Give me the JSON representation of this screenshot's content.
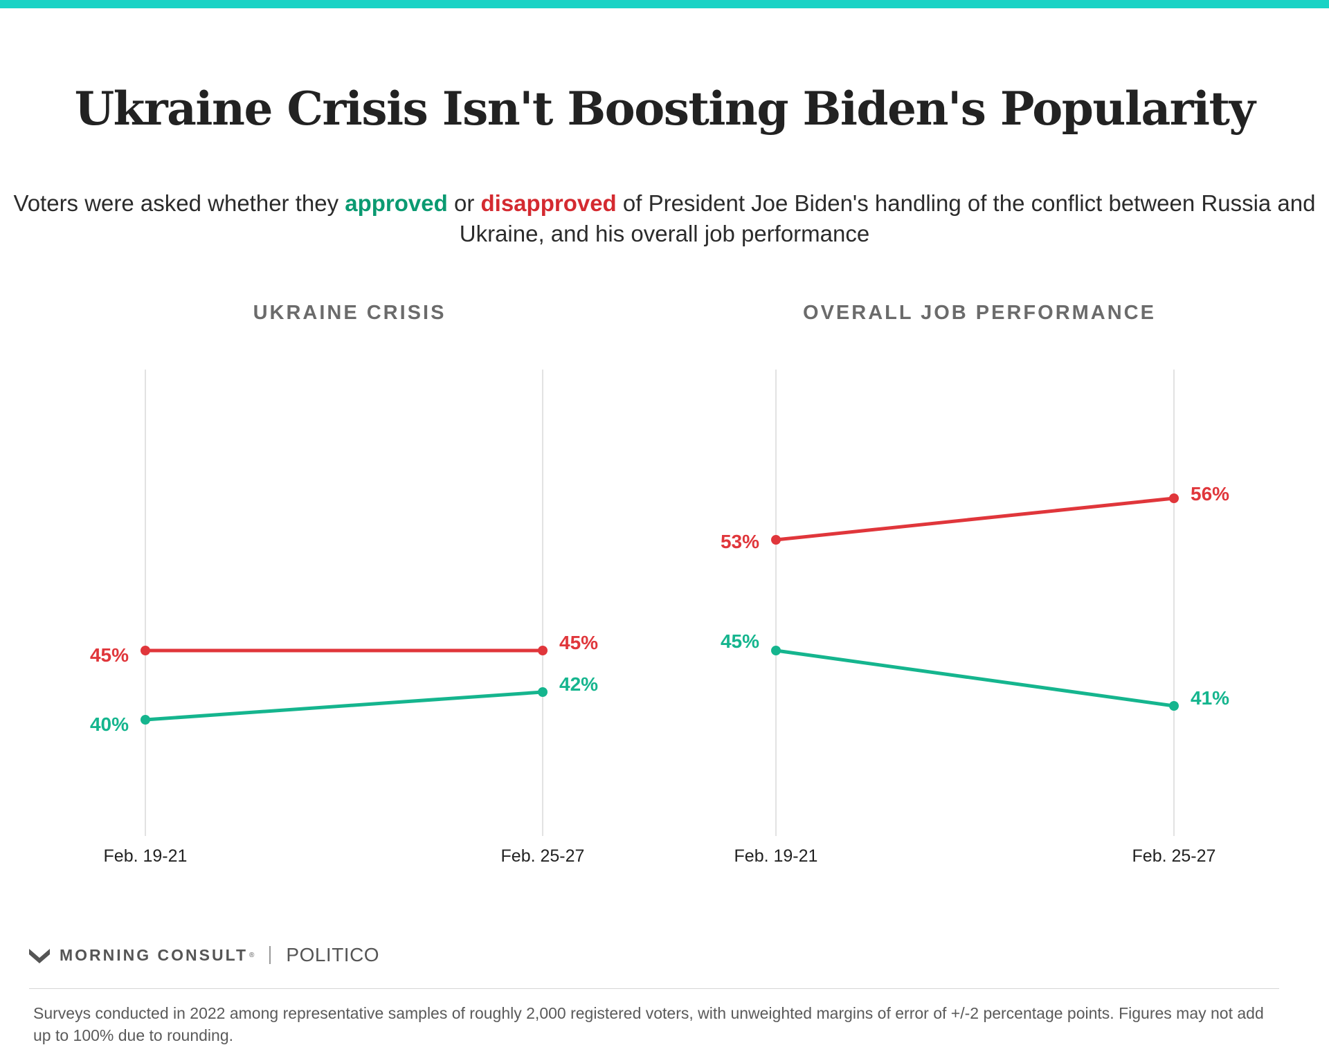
{
  "title": "Ukraine Crisis Isn't Boosting Biden's Popularity",
  "subtitle": {
    "part1": "Voters were asked whether they ",
    "approved": "approved",
    "part2": " or ",
    "disapproved": "disapproved",
    "part3": " of President Joe Biden's handling of the conflict between Russia and Ukraine, and his overall job performance"
  },
  "colors": {
    "approve": "#15b58e",
    "disapprove": "#e0363b",
    "accent": "#19d3c5"
  },
  "chart_data": [
    {
      "type": "line",
      "title": "UKRAINE CRISIS",
      "x": [
        "Feb. 19-21",
        "Feb. 25-27"
      ],
      "series": [
        {
          "key": "disapprove",
          "values": [
            45,
            45
          ],
          "labels": [
            "45%",
            "45%"
          ]
        },
        {
          "key": "approve",
          "values": [
            40,
            42
          ],
          "labels": [
            "40%",
            "42%"
          ]
        }
      ],
      "ylim": [
        33,
        60
      ],
      "grid": "vertical"
    },
    {
      "type": "line",
      "title": "OVERALL JOB PERFORMANCE",
      "x": [
        "Feb. 19-21",
        "Feb. 25-27"
      ],
      "series": [
        {
          "key": "disapprove",
          "values": [
            53,
            56
          ],
          "labels": [
            "53%",
            "56%"
          ]
        },
        {
          "key": "approve",
          "values": [
            45,
            41
          ],
          "labels": [
            "45%",
            "41%"
          ]
        }
      ],
      "ylim": [
        33,
        60
      ],
      "grid": "vertical"
    }
  ],
  "footer": {
    "brand": "MORNING CONSULT",
    "registered": "®",
    "partner": "POLITICO",
    "note": "Surveys conducted in 2022 among representative samples of roughly 2,000 registered voters, with unweighted margins of error of +/-2 percentage points. Figures may not add up to 100% due to rounding."
  }
}
